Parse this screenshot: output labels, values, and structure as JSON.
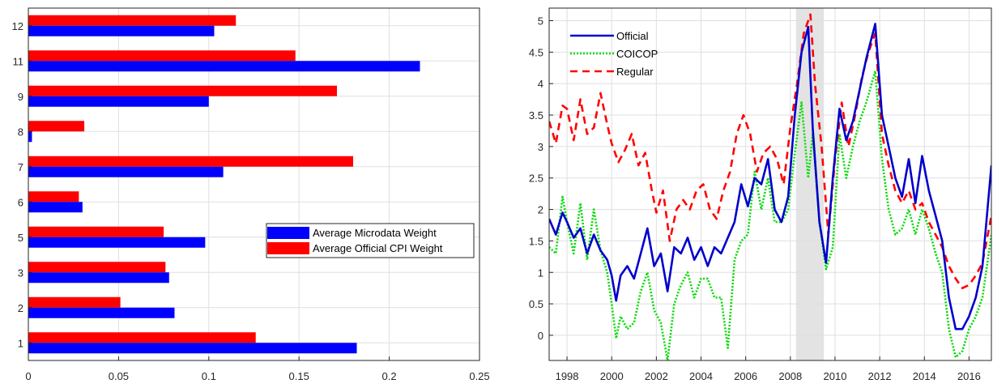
{
  "chart_data": [
    {
      "type": "bar",
      "orientation": "horizontal",
      "categories": [
        "1",
        "2",
        "3",
        "5",
        "6",
        "7",
        "8",
        "9",
        "11",
        "12"
      ],
      "series": [
        {
          "name": "Average Microdata Weight",
          "color": "#0000ff",
          "values": [
            0.182,
            0.081,
            0.078,
            0.098,
            0.03,
            0.108,
            0.002,
            0.1,
            0.217,
            0.103
          ]
        },
        {
          "name": "Average Official CPI Weight",
          "color": "#ff0000",
          "values": [
            0.126,
            0.051,
            0.076,
            0.075,
            0.028,
            0.18,
            0.031,
            0.171,
            0.148,
            0.115
          ]
        }
      ],
      "xlim": [
        0,
        0.25
      ],
      "xticks": [
        "0",
        "0.05",
        "0.1",
        "0.15",
        "0.2",
        "0.25"
      ],
      "grid": true,
      "legend_position": "right"
    },
    {
      "type": "line",
      "xlim": [
        1997.2,
        2017.0
      ],
      "ylim": [
        -0.4,
        5.2
      ],
      "xticks": [
        1998,
        2000,
        2002,
        2004,
        2006,
        2008,
        2010,
        2012,
        2014,
        2016
      ],
      "yticks": [
        "0",
        "0.5",
        "1",
        "1.5",
        "2",
        "2.5",
        "3",
        "3.5",
        "4",
        "4.5",
        "5"
      ],
      "grid": true,
      "legend_position": "top-left",
      "shaded_region": [
        2008.25,
        2009.5
      ],
      "series": [
        {
          "name": "Official",
          "color": "#0000cc",
          "style": "solid",
          "x": [
            1997.2,
            1997.5,
            1997.8,
            1998.0,
            1998.3,
            1998.6,
            1998.9,
            1999.2,
            1999.5,
            1999.8,
            2000.0,
            2000.2,
            2000.4,
            2000.7,
            2001.0,
            2001.3,
            2001.6,
            2001.9,
            2002.2,
            2002.5,
            2002.8,
            2003.1,
            2003.4,
            2003.7,
            2004.0,
            2004.3,
            2004.6,
            2004.9,
            2005.2,
            2005.5,
            2005.8,
            2006.1,
            2006.4,
            2006.7,
            2007.0,
            2007.3,
            2007.6,
            2007.9,
            2008.2,
            2008.5,
            2008.8,
            2009.0,
            2009.3,
            2009.6,
            2009.9,
            2010.2,
            2010.5,
            2010.8,
            2011.1,
            2011.4,
            2011.8,
            2012.1,
            2012.4,
            2012.7,
            2013.0,
            2013.3,
            2013.6,
            2013.9,
            2014.2,
            2014.5,
            2014.8,
            2015.1,
            2015.4,
            2015.7,
            2016.0,
            2016.3,
            2016.6,
            2017.0
          ],
          "y": [
            1.85,
            1.6,
            1.95,
            1.8,
            1.55,
            1.7,
            1.3,
            1.6,
            1.35,
            1.2,
            0.95,
            0.55,
            0.95,
            1.1,
            0.9,
            1.3,
            1.7,
            1.1,
            1.3,
            0.7,
            1.4,
            1.3,
            1.55,
            1.2,
            1.4,
            1.1,
            1.4,
            1.3,
            1.55,
            1.8,
            2.4,
            2.05,
            2.5,
            2.4,
            2.8,
            2.0,
            1.8,
            2.2,
            3.5,
            4.5,
            4.9,
            3.3,
            1.8,
            1.15,
            2.5,
            3.6,
            3.1,
            3.4,
            3.9,
            4.4,
            4.95,
            3.5,
            3.0,
            2.5,
            2.2,
            2.8,
            2.1,
            2.85,
            2.3,
            1.9,
            1.5,
            0.6,
            0.1,
            0.1,
            0.3,
            0.6,
            1.1,
            2.7
          ]
        },
        {
          "name": "COICOP",
          "color": "#00dd00",
          "style": "dotted",
          "x": [
            1997.2,
            1997.5,
            1997.8,
            1998.0,
            1998.3,
            1998.6,
            1998.9,
            1999.2,
            1999.5,
            1999.8,
            2000.0,
            2000.2,
            2000.4,
            2000.7,
            2001.0,
            2001.3,
            2001.6,
            2001.9,
            2002.2,
            2002.5,
            2002.8,
            2003.1,
            2003.4,
            2003.7,
            2004.0,
            2004.3,
            2004.6,
            2004.9,
            2005.2,
            2005.5,
            2005.8,
            2006.1,
            2006.4,
            2006.7,
            2007.0,
            2007.3,
            2007.6,
            2007.9,
            2008.2,
            2008.5,
            2008.8,
            2009.0,
            2009.3,
            2009.6,
            2009.9,
            2010.2,
            2010.5,
            2010.8,
            2011.1,
            2011.4,
            2011.8,
            2012.1,
            2012.4,
            2012.7,
            2013.0,
            2013.3,
            2013.6,
            2013.9,
            2014.2,
            2014.5,
            2014.8,
            2015.1,
            2015.4,
            2015.7,
            2016.0,
            2016.3,
            2016.6,
            2017.0
          ],
          "y": [
            1.4,
            1.3,
            2.2,
            1.8,
            1.3,
            2.1,
            1.2,
            2.0,
            1.35,
            1.0,
            0.5,
            -0.05,
            0.3,
            0.1,
            0.2,
            0.7,
            1.0,
            0.4,
            0.2,
            -0.4,
            0.5,
            0.8,
            1.0,
            0.6,
            0.9,
            0.9,
            0.6,
            0.6,
            -0.2,
            1.2,
            1.5,
            1.6,
            2.6,
            2.0,
            2.5,
            1.8,
            1.8,
            2.0,
            2.9,
            3.7,
            2.5,
            3.2,
            1.8,
            1.05,
            1.4,
            3.2,
            2.5,
            3.0,
            3.4,
            3.7,
            4.2,
            2.8,
            2.0,
            1.6,
            1.7,
            2.0,
            1.6,
            2.0,
            1.7,
            1.3,
            1.0,
            0.1,
            -0.35,
            -0.25,
            0.1,
            0.3,
            0.6,
            1.6
          ]
        },
        {
          "name": "Regular",
          "color": "#ff0000",
          "style": "dashed",
          "x": [
            1997.2,
            1997.5,
            1997.8,
            1998.0,
            1998.3,
            1998.6,
            1998.9,
            1999.2,
            1999.5,
            1999.8,
            2000.0,
            2000.3,
            2000.6,
            2000.9,
            2001.2,
            2001.5,
            2001.8,
            2002.0,
            2002.3,
            2002.6,
            2002.9,
            2003.2,
            2003.5,
            2003.8,
            2004.1,
            2004.4,
            2004.7,
            2005.0,
            2005.3,
            2005.6,
            2005.9,
            2006.2,
            2006.5,
            2006.8,
            2007.1,
            2007.4,
            2007.7,
            2008.0,
            2008.3,
            2008.6,
            2008.9,
            2009.1,
            2009.4,
            2009.7,
            2010.0,
            2010.3,
            2010.6,
            2010.9,
            2011.2,
            2011.5,
            2011.8,
            2012.1,
            2012.4,
            2012.7,
            2013.0,
            2013.3,
            2013.6,
            2013.9,
            2014.2,
            2014.5,
            2014.8,
            2015.1,
            2015.4,
            2015.7,
            2016.0,
            2016.3,
            2016.6,
            2017.0
          ],
          "y": [
            3.4,
            3.05,
            3.65,
            3.6,
            3.1,
            3.75,
            3.2,
            3.3,
            3.85,
            3.35,
            3.05,
            2.75,
            2.95,
            3.2,
            2.7,
            2.9,
            2.3,
            1.95,
            2.3,
            1.5,
            2.0,
            2.15,
            2.0,
            2.3,
            2.4,
            2.0,
            1.85,
            2.3,
            2.6,
            3.2,
            3.5,
            3.2,
            2.6,
            2.9,
            3.0,
            2.8,
            2.4,
            3.3,
            4.0,
            4.8,
            5.1,
            4.0,
            3.0,
            1.6,
            2.8,
            3.7,
            3.0,
            3.5,
            4.1,
            4.5,
            4.8,
            3.2,
            2.7,
            2.3,
            2.1,
            2.3,
            2.0,
            2.1,
            1.8,
            1.6,
            1.4,
            1.1,
            0.9,
            0.75,
            0.8,
            0.95,
            1.15,
            1.9
          ]
        }
      ]
    }
  ]
}
